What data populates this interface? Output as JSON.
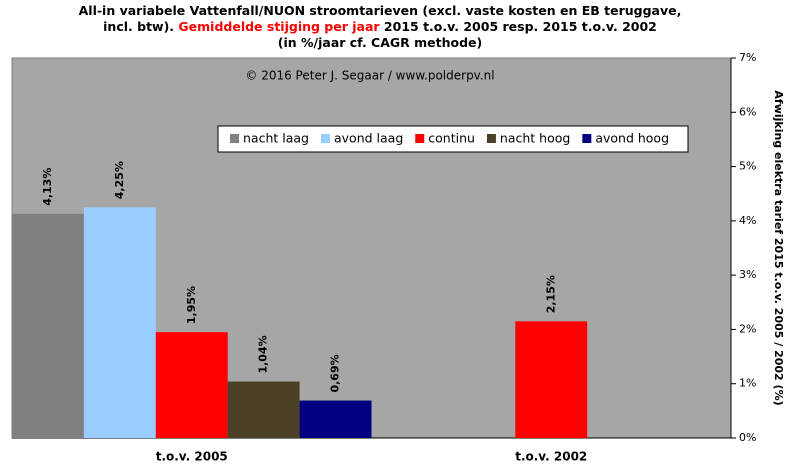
{
  "chart_data": {
    "type": "bar",
    "title_lines": [
      [
        {
          "text": "All-in variabele Vattenfall/NUON  stroomtarieven (excl. vaste kosten en EB teruggave,",
          "color": "#000000"
        }
      ],
      [
        {
          "text": "incl. btw). ",
          "color": "#000000"
        },
        {
          "text": "Gemiddelde stijging per jaar",
          "color": "#ff0000"
        },
        {
          "text": " 2015 t.o.v. 2005 resp. 2015 t.o.v. 2002",
          "color": "#000000"
        }
      ],
      [
        {
          "text": "(in %/jaar cf. CAGR methode)",
          "color": "#000000"
        }
      ]
    ],
    "annotation": "© 2016 Peter J. Segaar / www.polderpv.nl",
    "y_label": "Afwijking elektra tarief 2015 t.o.v. 2005 / 2002 (%)",
    "categories": [
      "t.o.v. 2005",
      "t.o.v. 2002"
    ],
    "series": [
      {
        "name": "nacht laag",
        "color": "#808080",
        "values": [
          4.13,
          null
        ],
        "value_labels": [
          "4,13%",
          null
        ]
      },
      {
        "name": "avond laag",
        "color": "#99ccff",
        "values": [
          4.25,
          null
        ],
        "value_labels": [
          "4,25%",
          null
        ]
      },
      {
        "name": "continu",
        "color": "#ff0000",
        "values": [
          1.95,
          2.15
        ],
        "value_labels": [
          "1,95%",
          "2,15%"
        ]
      },
      {
        "name": "nacht hoog",
        "color": "#4c4127",
        "values": [
          1.04,
          null
        ],
        "value_labels": [
          "1,04%",
          null
        ]
      },
      {
        "name": "avond hoog",
        "color": "#000080",
        "values": [
          0.69,
          null
        ],
        "value_labels": [
          "0,69%",
          null
        ]
      }
    ],
    "ylim": [
      0,
      7
    ],
    "yticks": [
      {
        "value": 0,
        "label": "0%"
      },
      {
        "value": 1,
        "label": "1%"
      },
      {
        "value": 2,
        "label": "2%"
      },
      {
        "value": 3,
        "label": "3%"
      },
      {
        "value": 4,
        "label": "4%"
      },
      {
        "value": 5,
        "label": "5%"
      },
      {
        "value": 6,
        "label": "6%"
      },
      {
        "value": 7,
        "label": "7%"
      }
    ],
    "y_axis_side": "right",
    "legend": "top-right",
    "grid": false
  }
}
